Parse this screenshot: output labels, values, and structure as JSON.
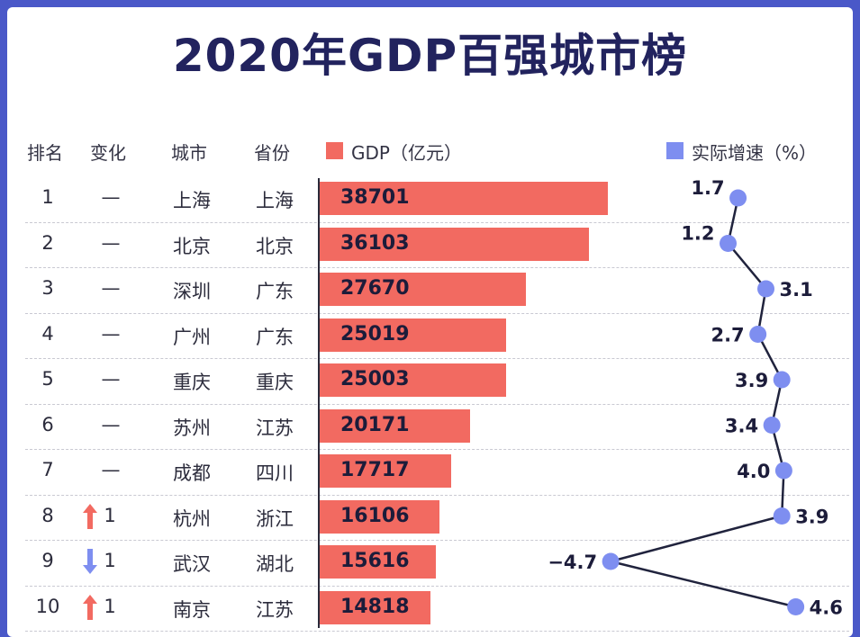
{
  "title": "2020年GDP百强城市榜",
  "headers": {
    "rank": "排名",
    "change": "变化",
    "city": "城市",
    "province": "省份",
    "gdp": "GDP（亿元）",
    "growth": "实际增速（%）"
  },
  "colors": {
    "gdp_bar": "#f26a61",
    "growth_point": "#7e8ef0",
    "growth_line": "#20233d",
    "up_arrow": "#f26a61",
    "down_arrow": "#7e8ef0"
  },
  "chart_data": {
    "type": "bar",
    "title": "2020年GDP百强城市榜",
    "categories": [
      "上海",
      "北京",
      "深圳",
      "广州",
      "重庆",
      "苏州",
      "成都",
      "杭州",
      "武汉",
      "南京"
    ],
    "rows": [
      {
        "rank": "1",
        "change": "—",
        "change_dir": "none",
        "city": "上海",
        "province": "上海",
        "gdp": 38701,
        "growth": 1.7
      },
      {
        "rank": "2",
        "change": "—",
        "change_dir": "none",
        "city": "北京",
        "province": "北京",
        "gdp": 36103,
        "growth": 1.2
      },
      {
        "rank": "3",
        "change": "—",
        "change_dir": "none",
        "city": "深圳",
        "province": "广东",
        "gdp": 27670,
        "growth": 3.1
      },
      {
        "rank": "4",
        "change": "—",
        "change_dir": "none",
        "city": "广州",
        "province": "广东",
        "gdp": 25019,
        "growth": 2.7
      },
      {
        "rank": "5",
        "change": "—",
        "change_dir": "none",
        "city": "重庆",
        "province": "重庆",
        "gdp": 25003,
        "growth": 3.9
      },
      {
        "rank": "6",
        "change": "—",
        "change_dir": "none",
        "city": "苏州",
        "province": "江苏",
        "gdp": 20171,
        "growth": 3.4
      },
      {
        "rank": "7",
        "change": "—",
        "change_dir": "none",
        "city": "成都",
        "province": "四川",
        "gdp": 17717,
        "growth": 4.0
      },
      {
        "rank": "8",
        "change": "1",
        "change_dir": "up",
        "city": "杭州",
        "province": "浙江",
        "gdp": 16106,
        "growth": 3.9
      },
      {
        "rank": "9",
        "change": "1",
        "change_dir": "down",
        "city": "武汉",
        "province": "湖北",
        "gdp": 15616,
        "growth": -4.7
      },
      {
        "rank": "10",
        "change": "1",
        "change_dir": "up",
        "city": "南京",
        "province": "江苏",
        "gdp": 14818,
        "growth": 4.6
      }
    ],
    "series": [
      {
        "name": "GDP（亿元）",
        "type": "bar",
        "values": [
          38701,
          36103,
          27670,
          25019,
          25003,
          20171,
          17717,
          16106,
          15616,
          14818
        ]
      },
      {
        "name": "实际增速（%）",
        "type": "line",
        "values": [
          1.7,
          1.2,
          3.1,
          2.7,
          3.9,
          3.4,
          4.0,
          3.9,
          -4.7,
          4.6
        ]
      }
    ],
    "legend": "top",
    "grid": false
  }
}
